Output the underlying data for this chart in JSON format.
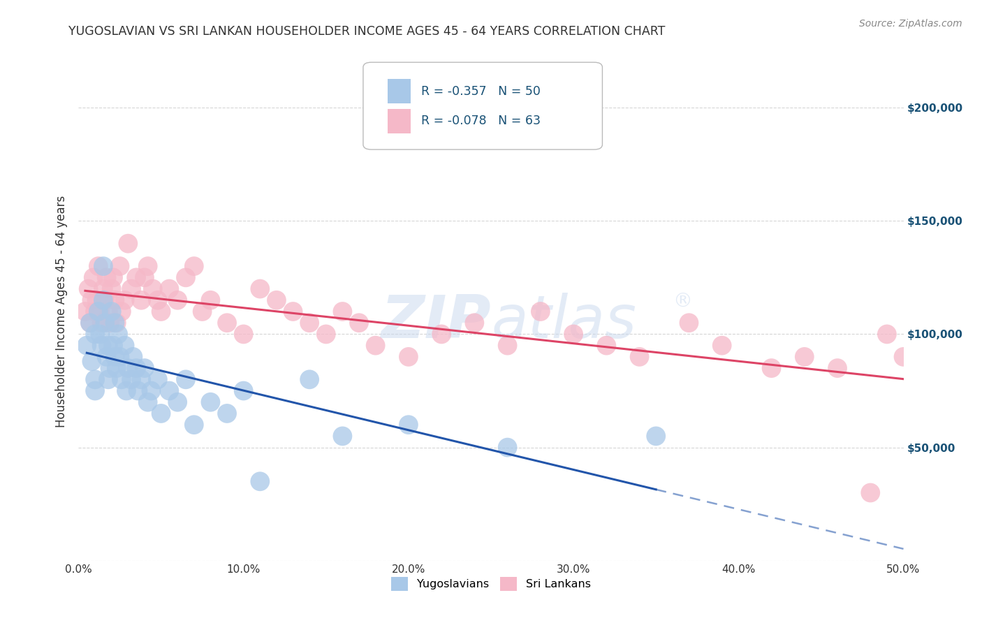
{
  "title": "YUGOSLAVIAN VS SRI LANKAN HOUSEHOLDER INCOME AGES 45 - 64 YEARS CORRELATION CHART",
  "source": "Source: ZipAtlas.com",
  "ylabel": "Householder Income Ages 45 - 64 years",
  "xlabel_ticks": [
    "0.0%",
    "10.0%",
    "20.0%",
    "30.0%",
    "40.0%",
    "50.0%"
  ],
  "xlabel_vals": [
    0.0,
    0.1,
    0.2,
    0.3,
    0.4,
    0.5
  ],
  "right_ytick_labels": [
    "$200,000",
    "$150,000",
    "$100,000",
    "$50,000"
  ],
  "right_ytick_vals": [
    200000,
    150000,
    100000,
    50000
  ],
  "xlim": [
    0.0,
    0.5
  ],
  "ylim": [
    0,
    220000
  ],
  "legend_R_yug": "-0.357",
  "legend_N_yug": "50",
  "legend_R_sri": "-0.078",
  "legend_N_sri": "63",
  "yug_color": "#a8c8e8",
  "sri_color": "#f5b8c8",
  "yug_line_color": "#2255aa",
  "sri_line_color": "#dd4466",
  "watermark_color": "#c8d8ee",
  "background_color": "#ffffff",
  "grid_color": "#bbbbbb",
  "axis_label_color": "#1a5276",
  "legend_text_color": "#1a5276",
  "yugoslavians_x": [
    0.005,
    0.007,
    0.008,
    0.01,
    0.01,
    0.01,
    0.012,
    0.013,
    0.014,
    0.015,
    0.015,
    0.016,
    0.017,
    0.018,
    0.018,
    0.019,
    0.02,
    0.021,
    0.022,
    0.022,
    0.023,
    0.024,
    0.025,
    0.026,
    0.028,
    0.029,
    0.03,
    0.032,
    0.033,
    0.035,
    0.036,
    0.038,
    0.04,
    0.042,
    0.044,
    0.048,
    0.05,
    0.055,
    0.06,
    0.065,
    0.07,
    0.08,
    0.09,
    0.1,
    0.11,
    0.14,
    0.16,
    0.2,
    0.26,
    0.35
  ],
  "yugoslavians_y": [
    95000,
    105000,
    88000,
    100000,
    80000,
    75000,
    110000,
    100000,
    95000,
    115000,
    130000,
    105000,
    90000,
    95000,
    80000,
    85000,
    110000,
    95000,
    105000,
    90000,
    85000,
    100000,
    90000,
    80000,
    95000,
    75000,
    85000,
    80000,
    90000,
    85000,
    75000,
    80000,
    85000,
    70000,
    75000,
    80000,
    65000,
    75000,
    70000,
    80000,
    60000,
    70000,
    65000,
    75000,
    35000,
    80000,
    55000,
    60000,
    50000,
    55000
  ],
  "srilankans_x": [
    0.004,
    0.006,
    0.007,
    0.008,
    0.009,
    0.01,
    0.011,
    0.012,
    0.013,
    0.014,
    0.015,
    0.016,
    0.017,
    0.018,
    0.019,
    0.02,
    0.021,
    0.022,
    0.023,
    0.025,
    0.026,
    0.028,
    0.03,
    0.032,
    0.035,
    0.038,
    0.04,
    0.042,
    0.045,
    0.048,
    0.05,
    0.055,
    0.06,
    0.065,
    0.07,
    0.075,
    0.08,
    0.09,
    0.1,
    0.11,
    0.12,
    0.13,
    0.14,
    0.15,
    0.16,
    0.17,
    0.18,
    0.2,
    0.22,
    0.24,
    0.26,
    0.28,
    0.3,
    0.32,
    0.34,
    0.37,
    0.39,
    0.42,
    0.44,
    0.46,
    0.48,
    0.49,
    0.5
  ],
  "srilankans_y": [
    110000,
    120000,
    105000,
    115000,
    125000,
    110000,
    115000,
    130000,
    110000,
    105000,
    120000,
    115000,
    125000,
    110000,
    105000,
    120000,
    125000,
    115000,
    105000,
    130000,
    110000,
    115000,
    140000,
    120000,
    125000,
    115000,
    125000,
    130000,
    120000,
    115000,
    110000,
    120000,
    115000,
    125000,
    130000,
    110000,
    115000,
    105000,
    100000,
    120000,
    115000,
    110000,
    105000,
    100000,
    110000,
    105000,
    95000,
    90000,
    100000,
    105000,
    95000,
    110000,
    100000,
    95000,
    90000,
    105000,
    95000,
    85000,
    90000,
    85000,
    30000,
    100000,
    90000
  ]
}
